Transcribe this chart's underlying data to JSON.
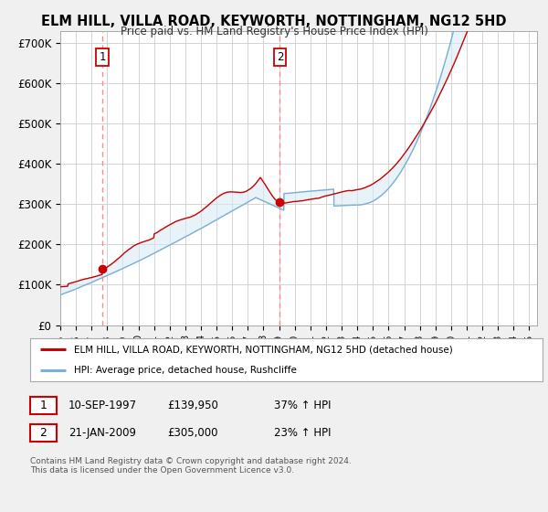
{
  "title": "ELM HILL, VILLA ROAD, KEYWORTH, NOTTINGHAM, NG12 5HD",
  "subtitle": "Price paid vs. HM Land Registry's House Price Index (HPI)",
  "xlim_start": 1995.0,
  "xlim_end": 2025.5,
  "ylim": [
    0,
    730000
  ],
  "yticks": [
    0,
    100000,
    200000,
    300000,
    400000,
    500000,
    600000,
    700000
  ],
  "ytick_labels": [
    "£0",
    "£100K",
    "£200K",
    "£300K",
    "£400K",
    "£500K",
    "£600K",
    "£700K"
  ],
  "background_color": "#f0f0f0",
  "plot_bg_color": "#ffffff",
  "grid_color": "#cccccc",
  "hpi_line_color": "#7ab0d4",
  "hpi_fill_color": "#d8eaf5",
  "property_line_color": "#cc0000",
  "sale1_date": 1997.69,
  "sale1_price": 139950,
  "sale2_date": 2009.05,
  "sale2_price": 305000,
  "legend_property": "ELM HILL, VILLA ROAD, KEYWORTH, NOTTINGHAM, NG12 5HD (detached house)",
  "legend_hpi": "HPI: Average price, detached house, Rushcliffe",
  "table_row1": [
    "1",
    "10-SEP-1997",
    "£139,950",
    "37% ↑ HPI"
  ],
  "table_row2": [
    "2",
    "21-JAN-2009",
    "£305,000",
    "23% ↑ HPI"
  ],
  "footnote": "Contains HM Land Registry data © Crown copyright and database right 2024.\nThis data is licensed under the Open Government Licence v3.0."
}
